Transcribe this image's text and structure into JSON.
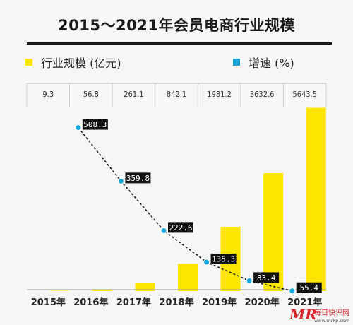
{
  "chart_data": {
    "type": "bar",
    "title": "2015～2021年会员电商行业规模",
    "categories": [
      "2015年",
      "2016年",
      "2017年",
      "2018年",
      "2019年",
      "2020年",
      "2021年"
    ],
    "series": [
      {
        "name": "行业规模 (亿元)",
        "type": "bar",
        "color": "#ffe600",
        "values": [
          9.3,
          56.8,
          261.1,
          842.1,
          1981.2,
          3632.6,
          5643.5
        ],
        "labels": [
          "9.3",
          "56.8",
          "261.1",
          "842.1",
          "1981.2",
          "3632.6",
          "5643.5"
        ]
      },
      {
        "name": "增速 (%)",
        "type": "line",
        "color": "#1aa6d6",
        "x": [
          "2016年",
          "2017年",
          "2018年",
          "2019年",
          "2020年",
          "2021年"
        ],
        "values": [
          508.3,
          359.8,
          222.6,
          135.3,
          83.4,
          55.4
        ],
        "labels": [
          "508.3",
          "359.8",
          "222.6",
          "135.3",
          "83.4",
          "55.4"
        ]
      }
    ],
    "bar_ylim": [
      0,
      6000
    ],
    "line_ylim": [
      0,
      550
    ],
    "line_style": "dotted",
    "legend_position": "top",
    "value_row_position": "top",
    "grid": false
  },
  "watermark": {
    "logo_text": "MR",
    "text": "每日快评网",
    "url": "www.mrkp.com"
  }
}
